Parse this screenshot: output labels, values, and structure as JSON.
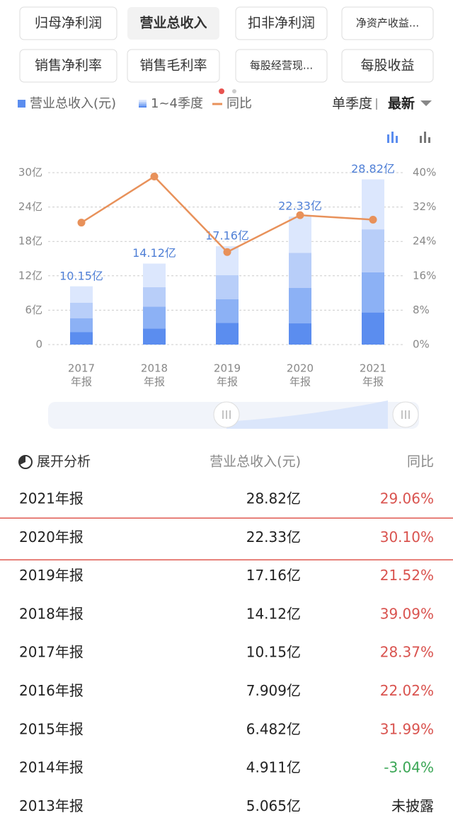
{
  "tabs": [
    "归母净利润",
    "营业总收入",
    "扣非净利润",
    "净资产收益...",
    "销售净利率",
    "销售毛利率",
    "每股经营现...",
    "每股收益"
  ],
  "selected_tab": 1,
  "period_toggle": "单季度",
  "sort_label": "最新",
  "chart_data": {
    "type": "bar",
    "categories": [
      [
        "2017",
        "年报"
      ],
      [
        "2018",
        "年报"
      ],
      [
        "2019",
        "年报"
      ],
      [
        "2020",
        "年报"
      ],
      [
        "2021",
        "年报"
      ]
    ],
    "series": [
      {
        "name": "营业总收入(元)",
        "color": "#5b8def",
        "values": [
          10.15,
          14.12,
          17.16,
          22.33,
          28.82
        ],
        "value_labels": [
          "10.15亿",
          "14.12亿",
          "17.16亿",
          "22.33亿",
          "28.82亿"
        ]
      },
      {
        "name": "1~4季度",
        "colors": [
          "#5b8def",
          "#8cb1f5",
          "#b8cef9",
          "#dce7fd"
        ],
        "quarter_values": [
          [
            2.2,
            2.4,
            2.7,
            2.85
          ],
          [
            2.8,
            3.8,
            3.4,
            4.12
          ],
          [
            3.8,
            4.1,
            4.2,
            5.06
          ],
          [
            3.7,
            6.2,
            6.1,
            6.33
          ],
          [
            5.6,
            7.0,
            7.5,
            8.72
          ]
        ]
      },
      {
        "name": "同比",
        "type": "line",
        "axis": "y2",
        "color": "#e8915a",
        "values": [
          28.37,
          39.09,
          21.52,
          30.1,
          29.06
        ]
      }
    ],
    "ylim": [
      0,
      30
    ],
    "yticks": [
      0,
      {
        "value": 6,
        "label": "6亿"
      },
      {
        "value": 12,
        "label": "12亿"
      },
      {
        "value": 18,
        "label": "18亿"
      },
      {
        "value": 24,
        "label": "24亿"
      },
      {
        "value": 30,
        "label": "30亿"
      }
    ],
    "y2lim": [
      0,
      40
    ],
    "y2ticks": [
      {
        "value": 0,
        "label": "0%"
      },
      {
        "value": 8,
        "label": "8%"
      },
      {
        "value": 16,
        "label": "16%"
      },
      {
        "value": 24,
        "label": "24%"
      },
      {
        "value": 32,
        "label": "32%"
      },
      {
        "value": 40,
        "label": "40%"
      }
    ],
    "grid": true
  },
  "table": {
    "header": [
      "展开分析",
      "营业总收入(元)",
      "同比"
    ],
    "rows": [
      [
        "2021年报",
        "28.82亿",
        "29.06%"
      ],
      [
        "2020年报",
        "22.33亿",
        "30.10%"
      ],
      [
        "2019年报",
        "17.16亿",
        "21.52%"
      ],
      [
        "2018年报",
        "14.12亿",
        "39.09%"
      ],
      [
        "2017年报",
        "10.15亿",
        "28.37%"
      ],
      [
        "2016年报",
        "7.909亿",
        "22.02%"
      ],
      [
        "2015年报",
        "6.482亿",
        "31.99%"
      ],
      [
        "2014年报",
        "4.911亿",
        "-3.04%"
      ],
      [
        "2013年报",
        "5.065亿",
        "未披露"
      ]
    ],
    "change_colors": [
      "#d9534f",
      "#d9534f",
      "#d9534f",
      "#d9534f",
      "#d9534f",
      "#d9534f",
      "#d9534f",
      "#3aa655",
      "#222"
    ],
    "highlighted_row": 1
  }
}
